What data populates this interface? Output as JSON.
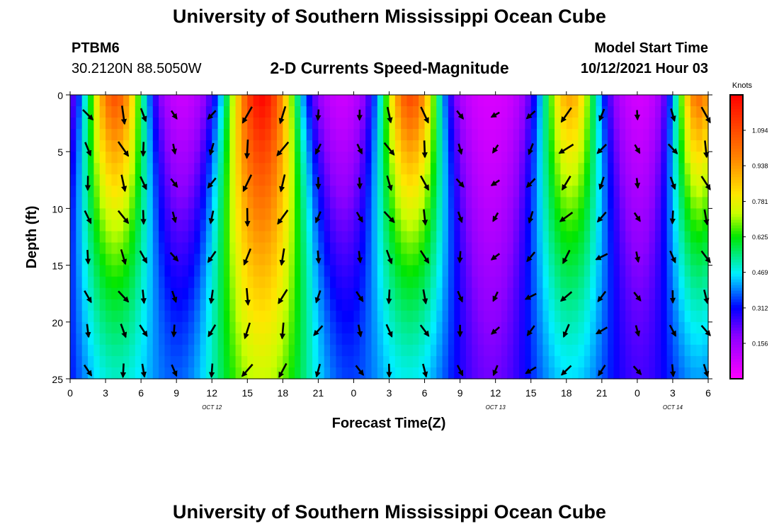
{
  "page": {
    "title_top": "University of Southern Mississippi Ocean Cube",
    "title_bottom": "University of Southern Mississippi Ocean Cube",
    "station_id": "PTBM6",
    "station_coords": "30.2120N  88.5050W",
    "plot_title": "2-D Currents Speed-Magnitude",
    "model_start_label": "Model Start Time",
    "model_start_value": "10/12/2021 Hour 03"
  },
  "chart_data": {
    "type": "heatmap",
    "title": "2-D Currents Speed-Magnitude",
    "xlabel": "Forecast Time(Z)",
    "ylabel": "Depth (ft)",
    "x_range": [
      0,
      54
    ],
    "y_range": [
      0,
      25
    ],
    "x_ticks": [
      {
        "v": 0,
        "label": "0"
      },
      {
        "v": 3,
        "label": "3"
      },
      {
        "v": 6,
        "label": "6"
      },
      {
        "v": 9,
        "label": "9"
      },
      {
        "v": 12,
        "label": "12"
      },
      {
        "v": 15,
        "label": "15"
      },
      {
        "v": 18,
        "label": "18"
      },
      {
        "v": 21,
        "label": "21"
      },
      {
        "v": 24,
        "label": "0"
      },
      {
        "v": 27,
        "label": "3"
      },
      {
        "v": 30,
        "label": "6"
      },
      {
        "v": 33,
        "label": "9"
      },
      {
        "v": 36,
        "label": "12"
      },
      {
        "v": 39,
        "label": "15"
      },
      {
        "v": 42,
        "label": "18"
      },
      {
        "v": 45,
        "label": "21"
      },
      {
        "v": 48,
        "label": "0"
      },
      {
        "v": 51,
        "label": "3"
      },
      {
        "v": 54,
        "label": "6"
      }
    ],
    "y_ticks": [
      0,
      5,
      10,
      15,
      20,
      25
    ],
    "date_labels": [
      {
        "x": 12,
        "label": "OCT 12"
      },
      {
        "x": 36,
        "label": "OCT 13"
      },
      {
        "x": 51,
        "label": "OCT 14"
      }
    ],
    "colorbar": {
      "unit": "Knots",
      "min": 0.0,
      "max": 1.25,
      "ticks": [
        0.156,
        0.312,
        0.469,
        0.625,
        0.781,
        0.938,
        1.094
      ],
      "tick_labels": [
        "0.156",
        "0.312",
        "0.469",
        "0.625",
        "0.781",
        "0.938",
        "1.094"
      ]
    },
    "speed_peaks": [
      {
        "t": 3.8,
        "surface_speed": 1.02,
        "width": 2.7,
        "decay_depth": 26,
        "dir_deg": 160
      },
      {
        "t": 16.2,
        "surface_speed": 1.18,
        "width": 3.2,
        "decay_depth": 40,
        "dir_deg": 200
      },
      {
        "t": 28.8,
        "surface_speed": 1.04,
        "width": 2.7,
        "decay_depth": 24,
        "dir_deg": 160
      },
      {
        "t": 42.3,
        "surface_speed": 0.86,
        "width": 2.7,
        "decay_depth": 28,
        "dir_deg": 222
      },
      {
        "t": 53.2,
        "surface_speed": 0.96,
        "width": 2.2,
        "decay_depth": 22,
        "dir_deg": 160
      }
    ],
    "vector_times": [
      1.5,
      4.5,
      6.2,
      8.8,
      12.0,
      15.0,
      18.0,
      21.0,
      24.5,
      27.0,
      30.0,
      33.0,
      36.0,
      39.0,
      42.0,
      45.0,
      48.0,
      51.0,
      53.8
    ],
    "vector_depths": [
      1,
      4,
      7,
      10,
      13.5,
      17,
      20,
      23.5
    ]
  }
}
